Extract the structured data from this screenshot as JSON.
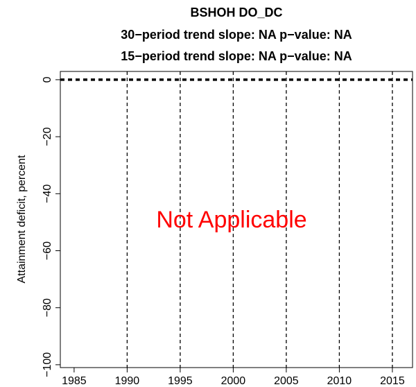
{
  "chart_data": {
    "type": "line",
    "title": "BSHOH   DO_DC",
    "subtitle": [
      "30−period trend slope: NA   p−value: NA",
      "15−period trend slope: NA   p−value: NA"
    ],
    "y_label": "Attainment deficit, percent",
    "annotation": {
      "text": "Not Applicable",
      "color": "#ff0000"
    },
    "series": [],
    "xlim": [
      1983.7,
      2016.9
    ],
    "ylim": [
      -101,
      2.9
    ],
    "xticks": [
      1985,
      1990,
      1995,
      2000,
      2005,
      2010,
      2015
    ],
    "yticks": [
      {
        "value": 0,
        "label": "0"
      },
      {
        "value": -20,
        "label": "−20"
      },
      {
        "value": -40,
        "label": "−40"
      },
      {
        "value": -60,
        "label": "−60"
      },
      {
        "value": -80,
        "label": "−80"
      },
      {
        "value": -100,
        "label": "−100"
      }
    ],
    "vlines": [
      1990,
      1995,
      2000,
      2005,
      2010,
      2015
    ],
    "hline": 0
  }
}
